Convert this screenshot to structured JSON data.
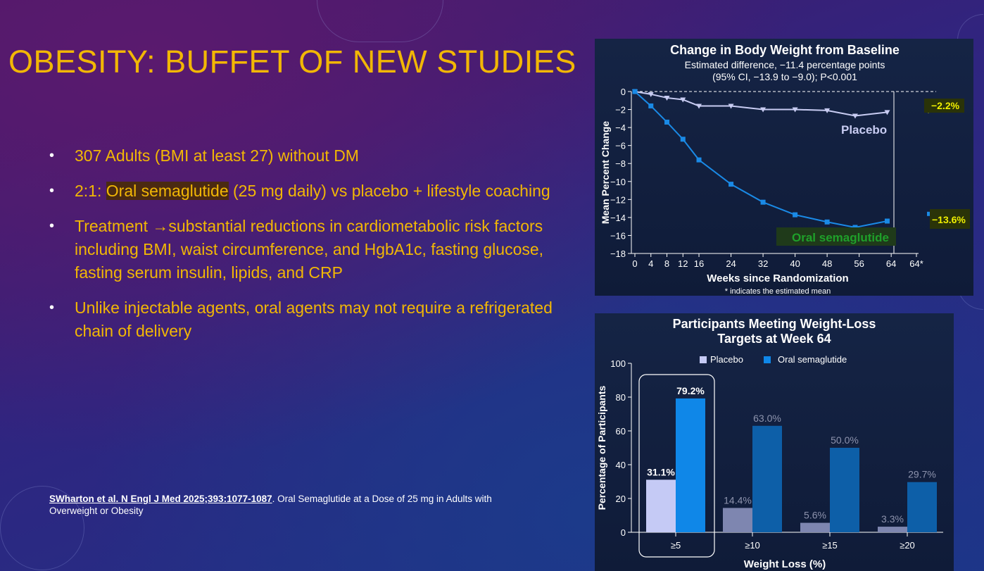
{
  "slide": {
    "title": "OBESITY: BUFFET OF NEW STUDIES",
    "bullets": [
      {
        "text": "307 Adults (BMI at least 27) without DM"
      },
      {
        "pre": "2:1: ",
        "highlight": "Oral semaglutide",
        "post": " (25 mg daily) vs placebo + lifestyle coaching"
      },
      {
        "text": "Treatment →substantial reductions in cardiometabolic risk factors including BMI, waist circumference, and HgbA1c, fasting glucose, fasting serum insulin, lipids, and CRP"
      },
      {
        "text": "Unlike injectable agents, oral agents may not require a refrigerated chain of delivery"
      }
    ],
    "reference": {
      "bold": "SWharton et al. N Engl J Med 2025;393:1077-1087",
      "rest": ". Oral Semaglutide at a Dose of 25 mg in Adults with Overweight or Obesity"
    }
  },
  "chart_data": [
    {
      "type": "line",
      "title": "Change in Body Weight from Baseline",
      "subtitle": [
        "Estimated difference, −11.4 percentage points",
        "(95% CI, −13.9 to −9.0); P<0.001"
      ],
      "xlabel": "Weeks since Randomization",
      "ylabel": "Mean Percent Change",
      "footnote": "* indicates the estimated mean",
      "xticks": [
        "0",
        "4",
        "8",
        "12",
        "16",
        "24",
        "32",
        "40",
        "48",
        "56",
        "64",
        "64*"
      ],
      "yticks": [
        "0",
        "−2",
        "−4",
        "−6",
        "−8",
        "−10",
        "−12",
        "−14",
        "−16",
        "−18"
      ],
      "ylim": [
        -18,
        0
      ],
      "xlim": [
        0,
        64
      ],
      "x": [
        0,
        4,
        8,
        12,
        16,
        24,
        32,
        40,
        48,
        55,
        63
      ],
      "series": [
        {
          "name": "Placebo",
          "color": "#c8ccf2",
          "values": [
            0,
            -0.3,
            -0.7,
            -0.9,
            -1.6,
            -1.6,
            -2.0,
            -2.0,
            -2.1,
            -2.7,
            -2.3
          ],
          "estimated": -2.2,
          "estimated_label": "−2.2%"
        },
        {
          "name": "Oral semaglutide",
          "color": "#1a8ae6",
          "values": [
            0,
            -1.6,
            -3.4,
            -5.3,
            -7.6,
            -10.3,
            -12.3,
            -13.7,
            -14.5,
            -15.1,
            -14.4
          ],
          "estimated": -13.6,
          "estimated_label": "−13.6%"
        }
      ]
    },
    {
      "type": "bar",
      "title": [
        "Participants Meeting Weight-Loss",
        "Targets at Week 64"
      ],
      "xlabel": "Weight Loss (%)",
      "ylabel": "Percentage of Participants",
      "ylim": [
        0,
        100
      ],
      "yticks": [
        "0",
        "20",
        "40",
        "60",
        "80",
        "100"
      ],
      "categories": [
        "≥5",
        "≥10",
        "≥15",
        "≥20"
      ],
      "legend": "top",
      "series": [
        {
          "name": "Placebo",
          "color": "#c5caf5",
          "values": [
            31.1,
            14.4,
            5.6,
            3.3
          ],
          "labels": [
            "31.1%",
            "14.4%",
            "5.6%",
            "3.3%"
          ]
        },
        {
          "name": "Oral semaglutide",
          "color": "#0f87e8",
          "values": [
            79.2,
            63.0,
            50.0,
            29.7
          ],
          "labels": [
            "79.2%",
            "63.0%",
            "50.0%",
            "29.7%"
          ]
        }
      ]
    }
  ]
}
